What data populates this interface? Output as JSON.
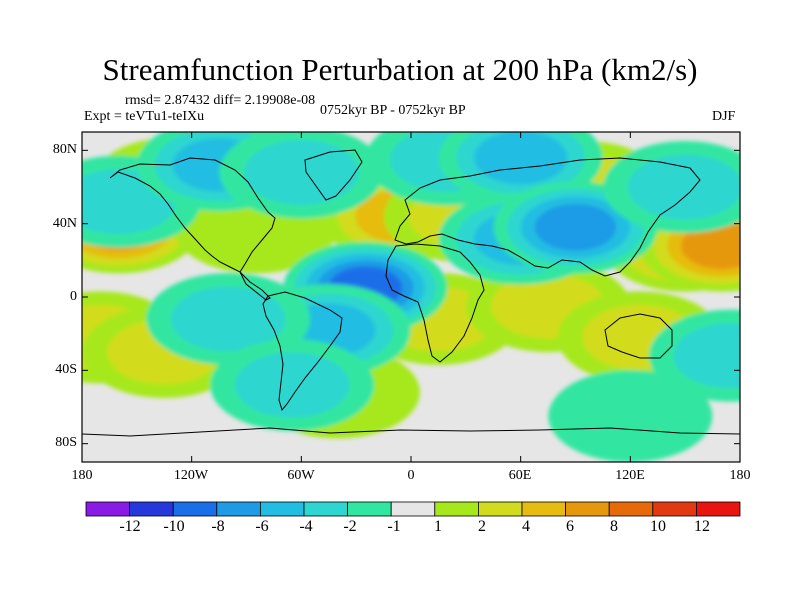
{
  "title": "Streamfunction Perturbation at 200 hPa (km2/s)",
  "stats": "rmsd= 2.87432  diff= 2.19908e-08",
  "expt": "Expt = teVTu1-teIXu",
  "period": "0752kyr BP - 0752kyr BP",
  "season": "DJF",
  "lat_labels": [
    "80N",
    "40N",
    "0",
    "40S",
    "80S"
  ],
  "lon_labels": [
    "180",
    "120W",
    "60W",
    "0",
    "60E",
    "120E",
    "180"
  ],
  "colorbar": {
    "labels": [
      "-12",
      "-10",
      "-8",
      "-6",
      "-4",
      "-2",
      "-1",
      "1",
      "2",
      "4",
      "6",
      "8",
      "10",
      "12"
    ],
    "colors": [
      "#8a1be6",
      "#2638dc",
      "#1a6ee8",
      "#1f9be6",
      "#22bde2",
      "#2dd6d0",
      "#31e6a1",
      "#e6e6e6",
      "#a6e81c",
      "#d2dc1e",
      "#e6bc10",
      "#e6980c",
      "#e66a0a",
      "#e23a10",
      "#e81410"
    ]
  },
  "map_fields": {
    "positive": [
      {
        "lon": -160,
        "lat": 38,
        "value": 6.5
      },
      {
        "lon": -170,
        "lat": -22,
        "value": 2.0
      },
      {
        "lon": -135,
        "lat": -30,
        "value": 2.5
      },
      {
        "lon": -130,
        "lat": 62,
        "value": 2.0
      },
      {
        "lon": -85,
        "lat": 38,
        "value": 1.5
      },
      {
        "lon": -10,
        "lat": 50,
        "value": 3.0
      },
      {
        "lon": -5,
        "lat": 44,
        "value": 5.0
      },
      {
        "lon": 30,
        "lat": 44,
        "value": 2.0
      },
      {
        "lon": 15,
        "lat": -12,
        "value": 2.5
      },
      {
        "lon": 75,
        "lat": -5,
        "value": 3.5
      },
      {
        "lon": 95,
        "lat": 60,
        "value": 2.0
      },
      {
        "lon": 150,
        "lat": 28,
        "value": 5.0
      },
      {
        "lon": 170,
        "lat": 28,
        "value": 6.5
      },
      {
        "lon": 125,
        "lat": -22,
        "value": 2.0
      },
      {
        "lon": -40,
        "lat": -52,
        "value": 1.5
      }
    ],
    "negative": [
      {
        "lon": -160,
        "lat": 52,
        "value": -3.5
      },
      {
        "lon": -105,
        "lat": 72,
        "value": -4.5
      },
      {
        "lon": -60,
        "lat": 68,
        "value": -3.0
      },
      {
        "lon": -25,
        "lat": 5,
        "value": -8.5
      },
      {
        "lon": -45,
        "lat": -18,
        "value": -5.0
      },
      {
        "lon": -100,
        "lat": -12,
        "value": -3.0
      },
      {
        "lon": -65,
        "lat": -48,
        "value": -3.0
      },
      {
        "lon": 20,
        "lat": 75,
        "value": -3.5
      },
      {
        "lon": 60,
        "lat": 76,
        "value": -4.0
      },
      {
        "lon": 60,
        "lat": 32,
        "value": -4.0
      },
      {
        "lon": 90,
        "lat": 38,
        "value": -7.5
      },
      {
        "lon": 150,
        "lat": 60,
        "value": -2.0
      },
      {
        "lon": 175,
        "lat": -32,
        "value": -2.5
      },
      {
        "lon": 120,
        "lat": -65,
        "value": -1.5
      }
    ]
  }
}
